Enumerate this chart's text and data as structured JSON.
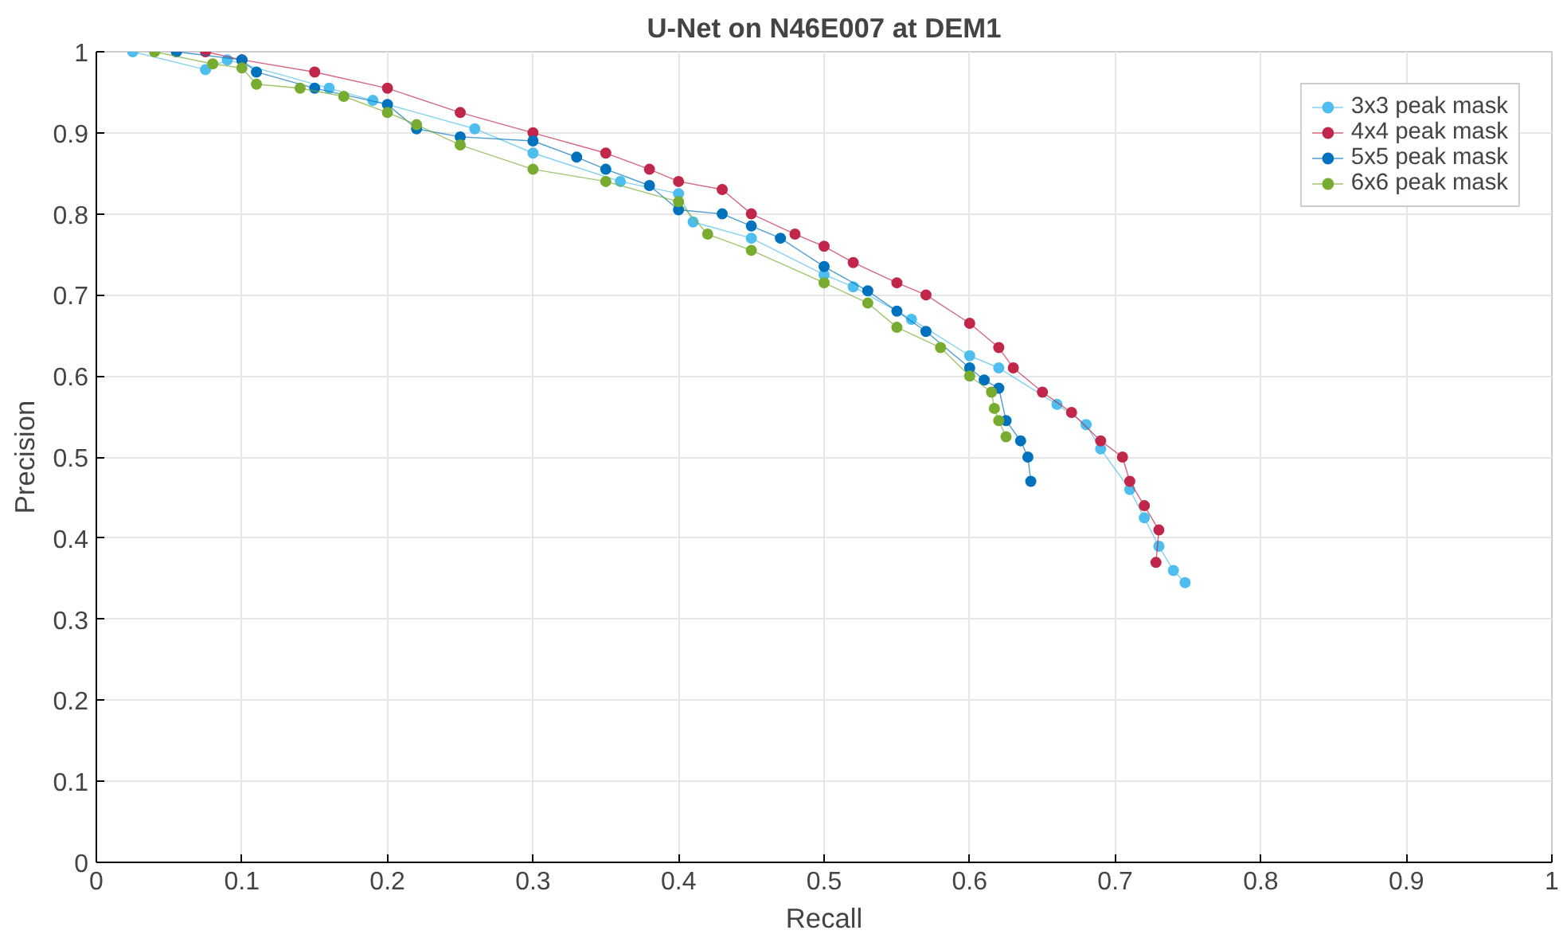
{
  "chart_data": {
    "type": "line",
    "title": "U-Net on N46E007 at DEM1",
    "xlabel": "Recall",
    "ylabel": "Precision",
    "xlim": [
      0,
      1
    ],
    "ylim": [
      0,
      1
    ],
    "xticks": [
      0,
      0.1,
      0.2,
      0.3,
      0.4,
      0.5,
      0.6,
      0.7,
      0.8,
      0.9,
      1
    ],
    "yticks": [
      0,
      0.1,
      0.2,
      0.3,
      0.4,
      0.5,
      0.6,
      0.7,
      0.8,
      0.9,
      1
    ],
    "grid": true,
    "legend": "top right",
    "marker": "circle",
    "line_style": "solid",
    "series": [
      {
        "name": "3x3 peak mask",
        "color": "#4dbeee",
        "x": [
          0.025,
          0.075,
          0.09,
          0.16,
          0.19,
          0.26,
          0.3,
          0.36,
          0.4,
          0.41,
          0.45,
          0.5,
          0.52,
          0.56,
          0.6,
          0.62,
          0.66,
          0.68,
          0.69,
          0.71,
          0.72,
          0.73,
          0.74,
          0.748
        ],
        "values": [
          1.0,
          0.978,
          0.99,
          0.955,
          0.94,
          0.905,
          0.875,
          0.84,
          0.825,
          0.79,
          0.77,
          0.725,
          0.71,
          0.67,
          0.625,
          0.61,
          0.565,
          0.54,
          0.51,
          0.46,
          0.425,
          0.39,
          0.36,
          0.345
        ]
      },
      {
        "name": "4x4 peak mask",
        "color": "#c1274a",
        "x": [
          0.075,
          0.1,
          0.15,
          0.2,
          0.25,
          0.3,
          0.35,
          0.38,
          0.4,
          0.43,
          0.45,
          0.48,
          0.5,
          0.52,
          0.55,
          0.57,
          0.6,
          0.62,
          0.63,
          0.65,
          0.67,
          0.69,
          0.705,
          0.71,
          0.72,
          0.73,
          0.728
        ],
        "values": [
          1.0,
          0.99,
          0.975,
          0.955,
          0.925,
          0.9,
          0.875,
          0.855,
          0.84,
          0.83,
          0.8,
          0.775,
          0.76,
          0.74,
          0.715,
          0.7,
          0.665,
          0.635,
          0.61,
          0.58,
          0.555,
          0.52,
          0.5,
          0.47,
          0.44,
          0.41,
          0.37
        ]
      },
      {
        "name": "5x5 peak mask",
        "color": "#0072bd",
        "x": [
          0.055,
          0.1,
          0.11,
          0.15,
          0.2,
          0.22,
          0.25,
          0.3,
          0.33,
          0.35,
          0.38,
          0.4,
          0.43,
          0.45,
          0.47,
          0.5,
          0.53,
          0.55,
          0.57,
          0.6,
          0.61,
          0.62,
          0.625,
          0.635,
          0.64,
          0.642
        ],
        "values": [
          1.0,
          0.99,
          0.975,
          0.955,
          0.935,
          0.905,
          0.895,
          0.89,
          0.87,
          0.855,
          0.835,
          0.805,
          0.8,
          0.785,
          0.77,
          0.735,
          0.705,
          0.68,
          0.655,
          0.61,
          0.595,
          0.585,
          0.545,
          0.52,
          0.5,
          0.47
        ]
      },
      {
        "name": "6x6 peak mask",
        "color": "#77ac30",
        "x": [
          0.04,
          0.08,
          0.1,
          0.11,
          0.14,
          0.17,
          0.2,
          0.22,
          0.25,
          0.3,
          0.35,
          0.4,
          0.42,
          0.45,
          0.5,
          0.53,
          0.55,
          0.58,
          0.6,
          0.615,
          0.617,
          0.62,
          0.625
        ],
        "values": [
          1.0,
          0.985,
          0.98,
          0.96,
          0.955,
          0.945,
          0.925,
          0.91,
          0.885,
          0.855,
          0.84,
          0.815,
          0.775,
          0.755,
          0.715,
          0.69,
          0.66,
          0.635,
          0.6,
          0.58,
          0.56,
          0.545,
          0.525
        ]
      }
    ]
  }
}
